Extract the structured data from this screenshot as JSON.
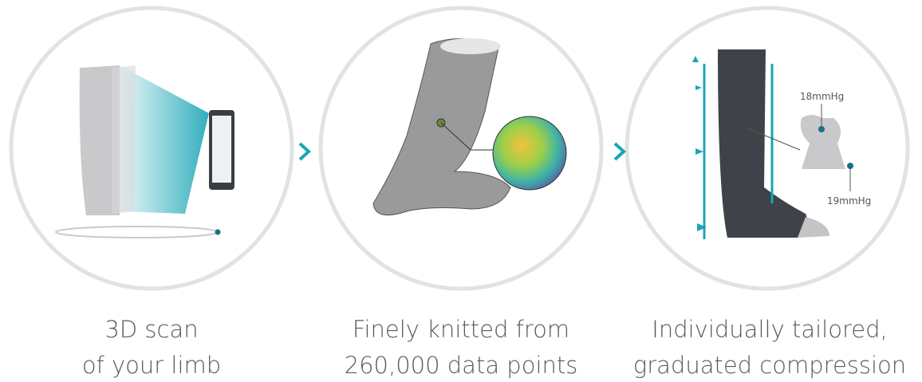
{
  "steps": [
    {
      "caption": [
        "3D scan",
        "of your limb"
      ]
    },
    {
      "caption": [
        "Finely knitted from",
        "260,000 data points"
      ]
    },
    {
      "caption": [
        "Individually tailored,",
        "graduated compression"
      ],
      "labels": [
        "18mmHg",
        "19mmHg"
      ]
    }
  ]
}
